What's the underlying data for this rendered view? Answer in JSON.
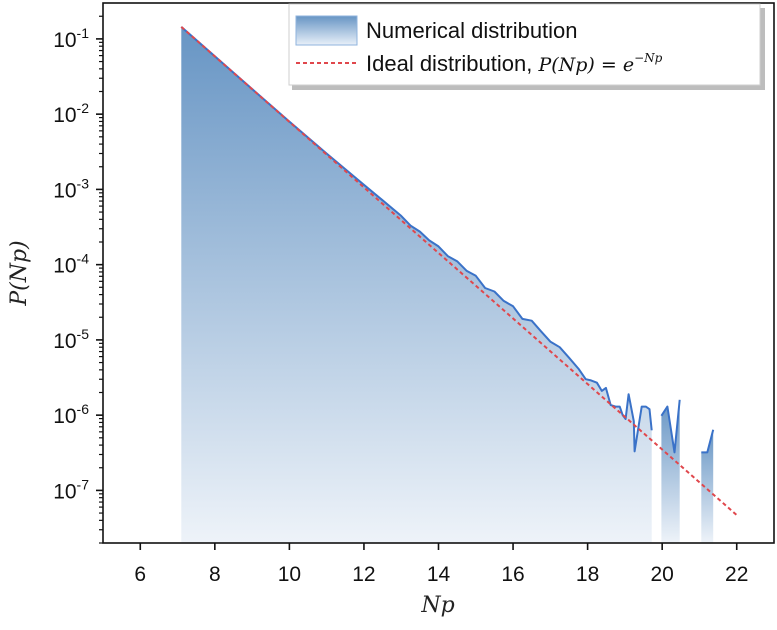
{
  "chart_data": {
    "type": "area",
    "xlabel": "Np",
    "ylabel": "P(Np)",
    "xlim": [
      5,
      23
    ],
    "ylim": [
      2e-08,
      0.3
    ],
    "yscale": "log",
    "grid": false,
    "legend_placement": "top-right",
    "x_ticks": [
      "6",
      "8",
      "10",
      "12",
      "14",
      "16",
      "18",
      "20",
      "22"
    ],
    "y_ticks": [
      {
        "base": "10",
        "exp": "-1",
        "value": 0.1
      },
      {
        "base": "10",
        "exp": "-2",
        "value": 0.01
      },
      {
        "base": "10",
        "exp": "-3",
        "value": 0.001
      },
      {
        "base": "10",
        "exp": "-4",
        "value": 0.0001
      },
      {
        "base": "10",
        "exp": "-5",
        "value": 1e-05
      },
      {
        "base": "10",
        "exp": "-6",
        "value": 1e-06
      },
      {
        "base": "10",
        "exp": "-7",
        "value": 1e-07
      }
    ],
    "series": [
      {
        "name": "Numerical distribution",
        "kind": "filled-line",
        "color": "#3a72c8",
        "fill_top": "#6795c4",
        "fill_bottom": "#eef3f9",
        "segments": [
          {
            "x": [
              7.1,
              8,
              9,
              10,
              11,
              12,
              12.5,
              13,
              13.25,
              13.5,
              13.75,
              14,
              14.25,
              14.5,
              14.75,
              15,
              15.25,
              15.5,
              15.75,
              16,
              16.25,
              16.5,
              16.75,
              17,
              17.25,
              17.5,
              17.76,
              17.95,
              18.09,
              18.25,
              18.38,
              18.49,
              18.62,
              18.75,
              18.86,
              18.94,
              19.02,
              19.1,
              19.24,
              19.26,
              19.45,
              19.56,
              19.66,
              19.72
            ],
            "y": [
              0.1445,
              0.0588,
              0.0216,
              0.00796,
              0.00299,
              0.00115,
              0.000716,
              0.000445,
              0.00033,
              0.000275,
              0.00021,
              0.000175,
              0.00013,
              0.000111,
              8.3e-05,
              7.1e-05,
              4.9e-05,
              4.4e-05,
              3.3e-05,
              2.8e-05,
              1.9e-05,
              1.8e-05,
              1.3e-05,
              9.5e-06,
              8e-06,
              5.8e-06,
              4.1e-06,
              3e-06,
              2.9e-06,
              2.7e-06,
              2.1e-06,
              2.3e-06,
              1.36e-06,
              1.3e-06,
              1.3e-06,
              1e-06,
              8.9e-07,
              1.9e-06,
              8.3e-07,
              3.3e-07,
              1.3e-06,
              1.3e-06,
              1.2e-06,
              6.3e-07
            ]
          },
          {
            "x": [
              19.98,
              20.14,
              20.33,
              20.47
            ],
            "y": [
              9.8e-07,
              1.3e-06,
              3.2e-07,
              1.6e-06
            ]
          },
          {
            "x": [
              21.05,
              21.21,
              21.37
            ],
            "y": [
              3.2e-07,
              3.2e-07,
              6.4e-07
            ]
          }
        ]
      },
      {
        "name": "Ideal distribution, P(Np) = e^{-Np}",
        "kind": "dashed-line",
        "color": "#e0474c",
        "x": [
          7.1,
          22
        ],
        "y": [
          0.1445,
          4.7e-08
        ]
      }
    ],
    "legend": [
      {
        "text": "Numerical distribution"
      },
      {
        "text": "Ideal distribution, ",
        "math": "P(Np) = e",
        "sup": "−Np"
      }
    ]
  }
}
